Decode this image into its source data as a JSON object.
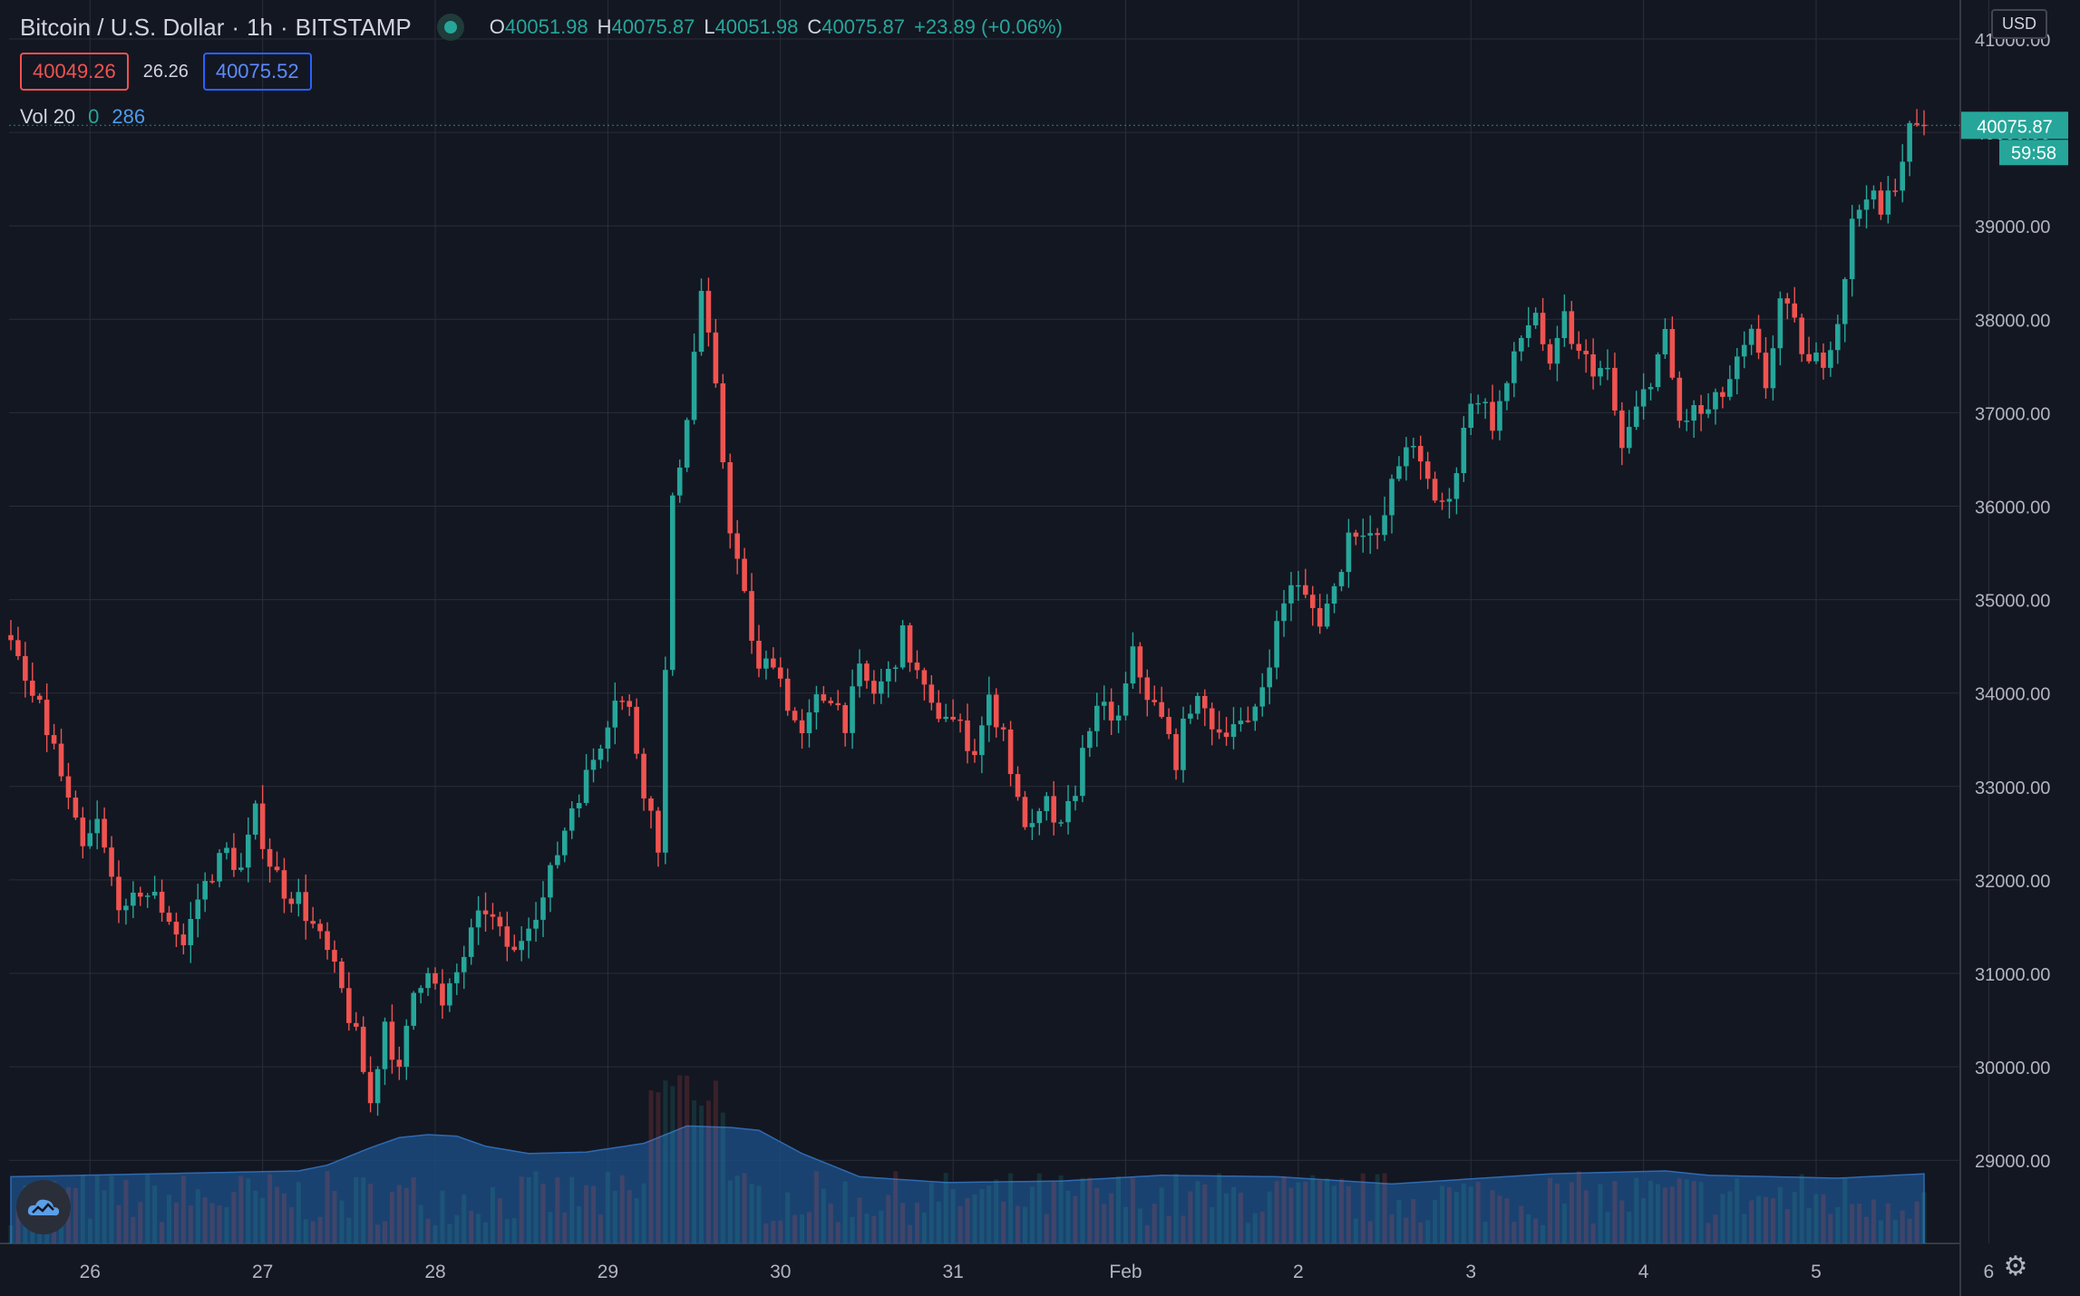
{
  "header": {
    "symbol": "Bitcoin / U.S. Dollar",
    "interval": "1h",
    "exchange": "BITSTAMP",
    "ohlc": {
      "o_label": "O",
      "o": "40051.98",
      "h_label": "H",
      "h": "40075.87",
      "l_label": "L",
      "l": "40051.98",
      "c_label": "C",
      "c": "40075.87",
      "change": "+23.89 (+0.06%)"
    }
  },
  "quote": {
    "bid": "40049.26",
    "spread": "26.26",
    "ask": "40075.52"
  },
  "volume_legend": {
    "label": "Vol 20",
    "value_a": "0",
    "value_b": "286"
  },
  "currency_button": "USD",
  "price_tag": {
    "price": "40075.87",
    "countdown": "59:58"
  },
  "colors": {
    "background": "#131722",
    "up": "#26a69a",
    "down": "#ef5350",
    "grid": "#2a2e39",
    "volume": "#1e4a7a"
  },
  "icons": {
    "logo": "cloud-chart-icon",
    "settings": "gear-icon",
    "status": "market-open-dot-icon"
  },
  "chart_data": {
    "type": "candlestick",
    "y_tick_labels": [
      "29000.00",
      "30000.00",
      "31000.00",
      "32000.00",
      "33000.00",
      "34000.00",
      "35000.00",
      "36000.00",
      "37000.00",
      "38000.00",
      "39000.00",
      "40000.00",
      "41000.00"
    ],
    "ylim": [
      28000,
      41600
    ],
    "x_tick_labels": [
      "26",
      "27",
      "28",
      "29",
      "30",
      "31",
      "Feb",
      "2",
      "3",
      "4",
      "5",
      "6"
    ],
    "grid": true,
    "close_path": [
      [
        0,
        34500
      ],
      [
        2,
        34100
      ],
      [
        4,
        33800
      ],
      [
        6,
        33400
      ],
      [
        8,
        32800
      ],
      [
        10,
        32300
      ],
      [
        12,
        32600
      ],
      [
        14,
        32000
      ],
      [
        16,
        31600
      ],
      [
        18,
        31900
      ],
      [
        20,
        31800
      ],
      [
        22,
        31600
      ],
      [
        24,
        31300
      ],
      [
        26,
        31800
      ],
      [
        28,
        32100
      ],
      [
        30,
        32300
      ],
      [
        32,
        32100
      ],
      [
        34,
        32700
      ],
      [
        36,
        32200
      ],
      [
        38,
        31900
      ],
      [
        40,
        31800
      ],
      [
        42,
        31500
      ],
      [
        44,
        31200
      ],
      [
        46,
        30800
      ],
      [
        48,
        30300
      ],
      [
        50,
        29600
      ],
      [
        52,
        30500
      ],
      [
        54,
        29900
      ],
      [
        56,
        30800
      ],
      [
        58,
        31100
      ],
      [
        60,
        30600
      ],
      [
        62,
        31000
      ],
      [
        64,
        31400
      ],
      [
        66,
        31700
      ],
      [
        68,
        31400
      ],
      [
        70,
        31200
      ],
      [
        72,
        31600
      ],
      [
        74,
        31800
      ],
      [
        76,
        32300
      ],
      [
        78,
        32800
      ],
      [
        80,
        33100
      ],
      [
        82,
        33500
      ],
      [
        84,
        34000
      ],
      [
        86,
        33800
      ],
      [
        88,
        33000
      ],
      [
        90,
        32400
      ],
      [
        92,
        36000
      ],
      [
        94,
        37000
      ],
      [
        96,
        38300
      ],
      [
        98,
        37200
      ],
      [
        100,
        35800
      ],
      [
        102,
        35000
      ],
      [
        104,
        34200
      ],
      [
        106,
        34400
      ],
      [
        108,
        33900
      ],
      [
        110,
        33500
      ],
      [
        112,
        33900
      ],
      [
        114,
        34000
      ],
      [
        116,
        33700
      ],
      [
        118,
        34200
      ],
      [
        120,
        34000
      ],
      [
        122,
        34200
      ],
      [
        124,
        34600
      ],
      [
        126,
        34200
      ],
      [
        128,
        33800
      ],
      [
        130,
        33800
      ],
      [
        132,
        33600
      ],
      [
        134,
        33400
      ],
      [
        136,
        33900
      ],
      [
        138,
        33600
      ],
      [
        140,
        32800
      ],
      [
        142,
        32500
      ],
      [
        144,
        32800
      ],
      [
        146,
        32500
      ],
      [
        148,
        33000
      ],
      [
        150,
        33700
      ],
      [
        152,
        33800
      ],
      [
        154,
        33700
      ],
      [
        156,
        34400
      ],
      [
        158,
        34000
      ],
      [
        160,
        33700
      ],
      [
        162,
        33300
      ],
      [
        164,
        33900
      ],
      [
        166,
        33800
      ],
      [
        168,
        33600
      ],
      [
        170,
        33700
      ],
      [
        172,
        33600
      ],
      [
        174,
        34100
      ],
      [
        176,
        34700
      ],
      [
        178,
        35200
      ],
      [
        180,
        35000
      ],
      [
        182,
        34800
      ],
      [
        184,
        35100
      ],
      [
        186,
        35700
      ],
      [
        188,
        35800
      ],
      [
        190,
        35600
      ],
      [
        192,
        36200
      ],
      [
        194,
        36700
      ],
      [
        196,
        36400
      ],
      [
        198,
        36100
      ],
      [
        200,
        36000
      ],
      [
        202,
        36900
      ],
      [
        204,
        37200
      ],
      [
        206,
        36900
      ],
      [
        208,
        37300
      ],
      [
        210,
        37800
      ],
      [
        212,
        38100
      ],
      [
        214,
        37400
      ],
      [
        216,
        38000
      ],
      [
        218,
        37600
      ],
      [
        220,
        37500
      ],
      [
        222,
        37400
      ],
      [
        224,
        36600
      ],
      [
        226,
        37000
      ],
      [
        228,
        37400
      ],
      [
        230,
        37800
      ],
      [
        232,
        36900
      ],
      [
        234,
        37000
      ],
      [
        236,
        37000
      ],
      [
        238,
        37200
      ],
      [
        240,
        37500
      ],
      [
        242,
        37800
      ],
      [
        244,
        37300
      ],
      [
        246,
        38200
      ],
      [
        248,
        37900
      ],
      [
        250,
        37500
      ],
      [
        252,
        37600
      ],
      [
        254,
        38000
      ],
      [
        256,
        39000
      ],
      [
        258,
        39400
      ],
      [
        260,
        39100
      ],
      [
        262,
        39500
      ],
      [
        264,
        40000
      ],
      [
        266,
        40076
      ]
    ],
    "volume_profile": [
      [
        0,
        230
      ],
      [
        20,
        240
      ],
      [
        40,
        250
      ],
      [
        44,
        270
      ],
      [
        50,
        330
      ],
      [
        54,
        365
      ],
      [
        58,
        375
      ],
      [
        62,
        370
      ],
      [
        66,
        335
      ],
      [
        72,
        310
      ],
      [
        80,
        315
      ],
      [
        88,
        345
      ],
      [
        94,
        405
      ],
      [
        100,
        400
      ],
      [
        104,
        390
      ],
      [
        110,
        310
      ],
      [
        118,
        230
      ],
      [
        130,
        210
      ],
      [
        146,
        215
      ],
      [
        160,
        235
      ],
      [
        176,
        230
      ],
      [
        192,
        205
      ],
      [
        214,
        240
      ],
      [
        230,
        250
      ],
      [
        236,
        235
      ],
      [
        254,
        225
      ],
      [
        266,
        240
      ]
    ]
  }
}
